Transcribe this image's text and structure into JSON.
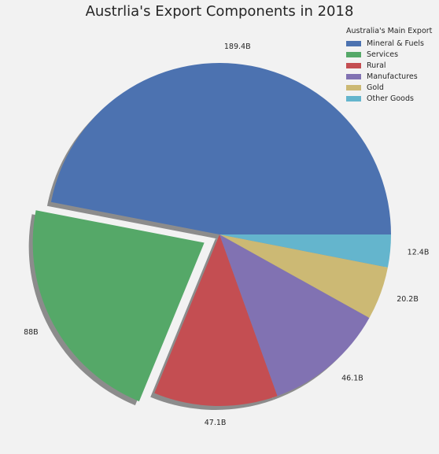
{
  "chart_data": {
    "type": "pie",
    "title": "Austrlia's Export Components in 2018",
    "legend": {
      "title": "Australia's Main Export",
      "placement": "top-right"
    },
    "slices": [
      {
        "category": "Mineral & Fuels",
        "value": 189.4,
        "label": "189.4B",
        "color": "#4c72b0",
        "exploded": false
      },
      {
        "category": "Services",
        "value": 88,
        "label": "88B",
        "color": "#55a868",
        "exploded": true
      },
      {
        "category": "Rural",
        "value": 47.1,
        "label": "47.1B",
        "color": "#c44e52",
        "exploded": false
      },
      {
        "category": "Manufactures",
        "value": 46.1,
        "label": "46.1B",
        "color": "#8172b2",
        "exploded": false
      },
      {
        "category": "Gold",
        "value": 20.2,
        "label": "20.2B",
        "color": "#ccb974",
        "exploded": false
      },
      {
        "category": "Other Goods",
        "value": 12.4,
        "label": "12.4B",
        "color": "#64b5cd",
        "exploded": false
      }
    ],
    "start_angle_deg": 0,
    "direction": "counterclockwise",
    "shadow": true
  }
}
